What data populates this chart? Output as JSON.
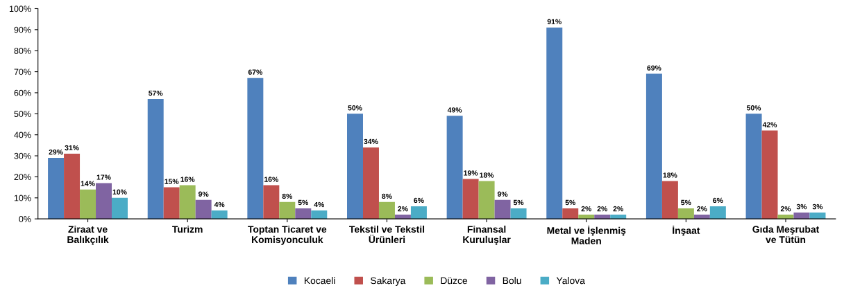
{
  "chart_data": {
    "type": "bar",
    "categories": [
      "Ziraat ve\nBalıkçılık",
      "Turizm",
      "Toptan Ticaret ve\nKomisyonculuk",
      "Tekstil ve Tekstil\nÜrünleri",
      "Finansal\nKuruluşlar",
      "Metal ve İşlenmiş\nMaden",
      "İnşaat",
      "Gıda Meşrubat\nve Tütün"
    ],
    "series": [
      {
        "name": "Kocaeli",
        "color": "#4f81bd",
        "values": [
          29,
          57,
          67,
          50,
          49,
          91,
          69,
          50
        ],
        "value_labels": [
          "29%",
          "57%",
          "67%",
          "50%",
          "49%",
          "91%",
          "69%",
          "50%"
        ]
      },
      {
        "name": "Sakarya",
        "color": "#c0504d",
        "values": [
          31,
          15,
          16,
          34,
          19,
          5,
          18,
          42
        ],
        "value_labels": [
          "31%",
          "15%",
          "16%",
          "34%",
          "19%",
          "5%",
          "18%",
          "42%"
        ]
      },
      {
        "name": "Düzce",
        "color": "#9bbb59",
        "values": [
          14,
          16,
          8,
          8,
          18,
          2,
          5,
          2
        ],
        "value_labels": [
          "14%",
          "16%",
          "8%",
          "8%",
          "18%",
          "2%",
          "5%",
          "2%"
        ]
      },
      {
        "name": "Bolu",
        "color": "#8064a2",
        "values": [
          17,
          9,
          5,
          2,
          9,
          2,
          2,
          3
        ],
        "value_labels": [
          "17%",
          "9%",
          "5%",
          "2%",
          "9%",
          "2%",
          "2%",
          "3%"
        ]
      },
      {
        "name": "Yalova",
        "color": "#4bacc6",
        "values": [
          10,
          4,
          4,
          6,
          5,
          2,
          6,
          3
        ],
        "value_labels": [
          "10%",
          "4%",
          "4%",
          "6%",
          "5%",
          "2%",
          "6%",
          "3%"
        ]
      }
    ],
    "ylim": [
      0,
      100
    ],
    "yticks": [
      {
        "value": 0,
        "label": "0%"
      },
      {
        "value": 10,
        "label": "10%"
      },
      {
        "value": 20,
        "label": "20%"
      },
      {
        "value": 30,
        "label": "30%"
      },
      {
        "value": 40,
        "label": "40%"
      },
      {
        "value": 50,
        "label": "50%"
      },
      {
        "value": 60,
        "label": "60%"
      },
      {
        "value": 70,
        "label": "70%"
      },
      {
        "value": 80,
        "label": "80%"
      },
      {
        "value": 90,
        "label": "90%"
      },
      {
        "value": 100,
        "label": "100%"
      }
    ],
    "grid": false,
    "legend": "bottom"
  }
}
